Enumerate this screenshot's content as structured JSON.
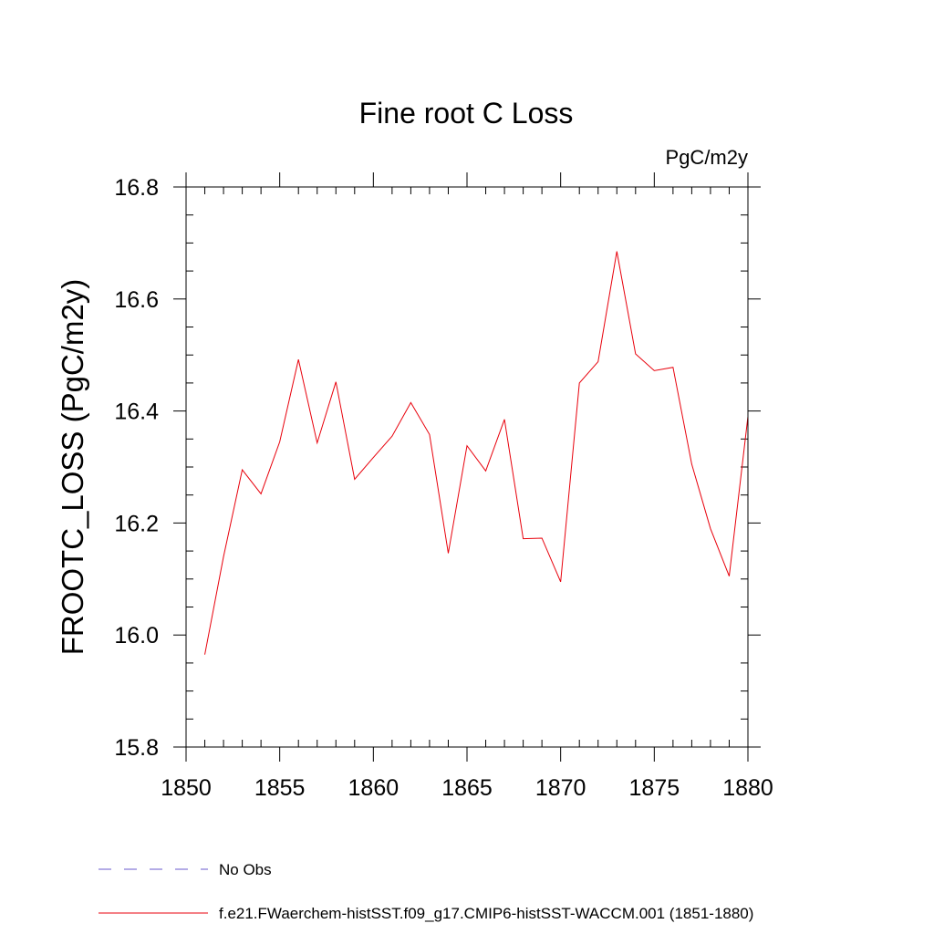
{
  "chart_data": {
    "type": "line",
    "title": "Fine root C Loss",
    "units_label": "PgC/m2y",
    "ylabel": "FROOTC_LOSS  (PgC/m2y)",
    "xlabel": "",
    "xlim": [
      1850,
      1880
    ],
    "ylim": [
      15.8,
      16.8
    ],
    "x_major_ticks": [
      1850,
      1855,
      1860,
      1865,
      1870,
      1875,
      1880
    ],
    "x_tick_labels": [
      "1850",
      "1855",
      "1860",
      "1865",
      "1870",
      "1875",
      "1880"
    ],
    "x_minor_step": 1,
    "y_major_ticks": [
      15.8,
      16.0,
      16.2,
      16.4,
      16.6,
      16.8
    ],
    "y_tick_labels": [
      "15.8",
      "16.0",
      "16.2",
      "16.4",
      "16.6",
      "16.8"
    ],
    "y_minor_step": 0.05,
    "grid": false,
    "legend_position": "bottom-left",
    "series": [
      {
        "name": "f.e21.FWaerchem-histSST.f09_g17.CMIP6-histSST-WACCM.001 (1851-1880)",
        "color": "#e8000b",
        "dash": "solid",
        "x": [
          1851,
          1852,
          1853,
          1854,
          1855,
          1856,
          1857,
          1858,
          1859,
          1860,
          1861,
          1862,
          1863,
          1864,
          1865,
          1866,
          1867,
          1868,
          1869,
          1870,
          1871,
          1872,
          1873,
          1874,
          1875,
          1876,
          1877,
          1878,
          1879,
          1880
        ],
        "values": [
          15.965,
          16.14,
          16.295,
          16.252,
          16.345,
          16.492,
          16.343,
          16.452,
          16.278,
          16.317,
          16.355,
          16.415,
          16.358,
          16.146,
          16.338,
          16.293,
          16.385,
          16.172,
          16.173,
          16.095,
          16.45,
          16.488,
          16.685,
          16.502,
          16.472,
          16.478,
          16.305,
          16.19,
          16.105,
          16.39
        ]
      },
      {
        "name": "No Obs",
        "color": "#6a5acd",
        "dash": "dashed",
        "x": [],
        "values": []
      }
    ]
  }
}
